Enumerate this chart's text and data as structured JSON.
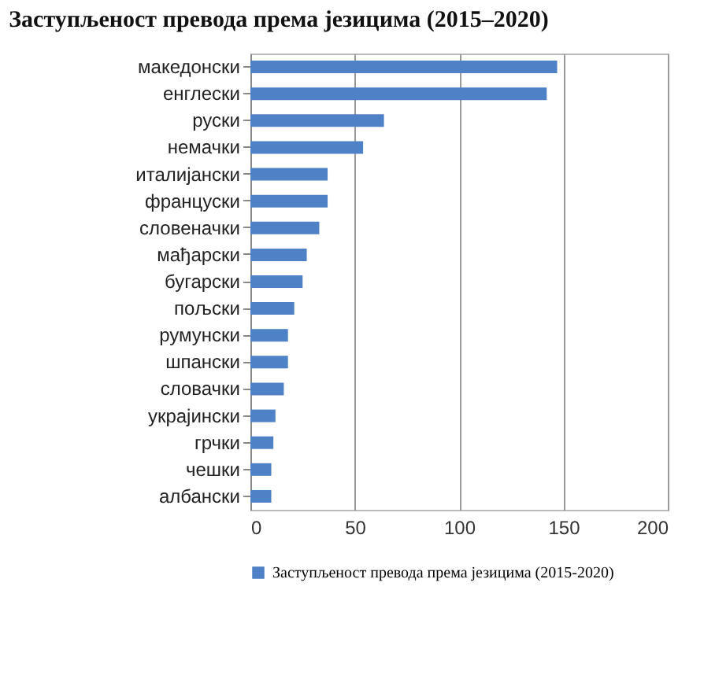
{
  "chart_data": {
    "type": "bar",
    "orientation": "horizontal",
    "title": "Заступљеност превода према језицима (2015–2020)",
    "categories": [
      "македонски",
      "енглески",
      "руски",
      "немачки",
      "италијански",
      "француски",
      "словеначки",
      "мађарски",
      "бугарски",
      "пољски",
      "румунски",
      "шпански",
      "словачки",
      "украјински",
      "грчки",
      "чешки",
      "албански"
    ],
    "series": [
      {
        "name": "Заступљеност превода према језицима (2015-2020)",
        "color": "#4f81c6",
        "values": [
          147,
          142,
          64,
          54,
          37,
          37,
          33,
          27,
          25,
          21,
          18,
          18,
          16,
          12,
          11,
          10,
          10
        ]
      }
    ],
    "xlim": [
      0,
      200
    ],
    "xticks": [
      0,
      50,
      100,
      150,
      200
    ],
    "grid": "x",
    "legend": "bottom"
  }
}
